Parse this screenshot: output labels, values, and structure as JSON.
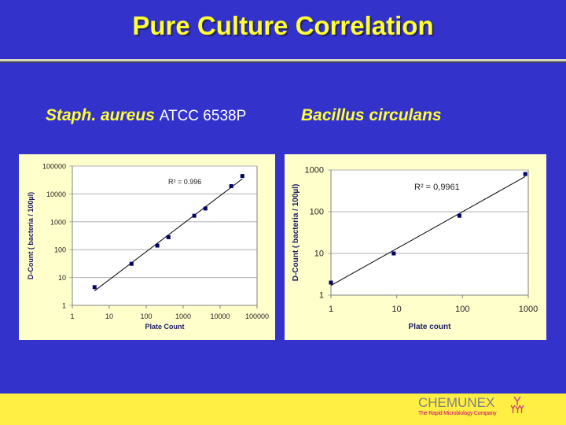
{
  "slide": {
    "title": "Pure Culture Correlation",
    "colors": {
      "background": "#3333cc",
      "title": "#ffff33",
      "chart_bg": "#ffffcc",
      "footer": "#ffee44",
      "marker": "#000066",
      "logo_gray": "#808080",
      "logo_magenta": "#cc0077"
    }
  },
  "left_panel": {
    "subtitle_species": "Staph. aureus",
    "subtitle_strain": "ATCC 6538P"
  },
  "right_panel": {
    "subtitle_species": "Bacillus circulans"
  },
  "footer": {
    "brand": "CHEMUNEX",
    "tagline": "The Rapid Microbiology Company",
    "logo_icon": "antibody-y-icon"
  },
  "chart_data": [
    {
      "type": "scatter",
      "title": "Staph. aureus ATCC 6538P",
      "xlabel": "Plate Count",
      "ylabel": "D-Count ( bacteria / 100µl)",
      "xscale": "log",
      "yscale": "log",
      "xlim": [
        1,
        100000
      ],
      "ylim": [
        1,
        100000
      ],
      "x_ticks": [
        "1",
        "10",
        "100",
        "1000",
        "10000",
        "100000"
      ],
      "y_ticks": [
        "1",
        "10",
        "100",
        "1000",
        "10000",
        "100000"
      ],
      "grid": "horizontal",
      "trendline": "power",
      "annotation": "R² = 0.996",
      "x": [
        4,
        40,
        200,
        400,
        2000,
        4000,
        20000,
        40000
      ],
      "y": [
        4.5,
        31,
        140,
        280,
        1650,
        3000,
        19000,
        44000
      ]
    },
    {
      "type": "scatter",
      "title": "Bacillus circulans",
      "xlabel": "Plate count",
      "ylabel": "D-Count ( bacteria / 100µl)",
      "xscale": "log",
      "yscale": "log",
      "xlim": [
        1,
        1000
      ],
      "ylim": [
        1,
        1000
      ],
      "x_ticks": [
        "1",
        "10",
        "100",
        "1000"
      ],
      "y_ticks": [
        "1",
        "10",
        "100",
        "1000"
      ],
      "grid": "horizontal",
      "trendline": "power",
      "annotation": "R² = 0,9961",
      "x": [
        1,
        9,
        90,
        900
      ],
      "y": [
        2,
        10,
        80,
        800
      ]
    }
  ]
}
